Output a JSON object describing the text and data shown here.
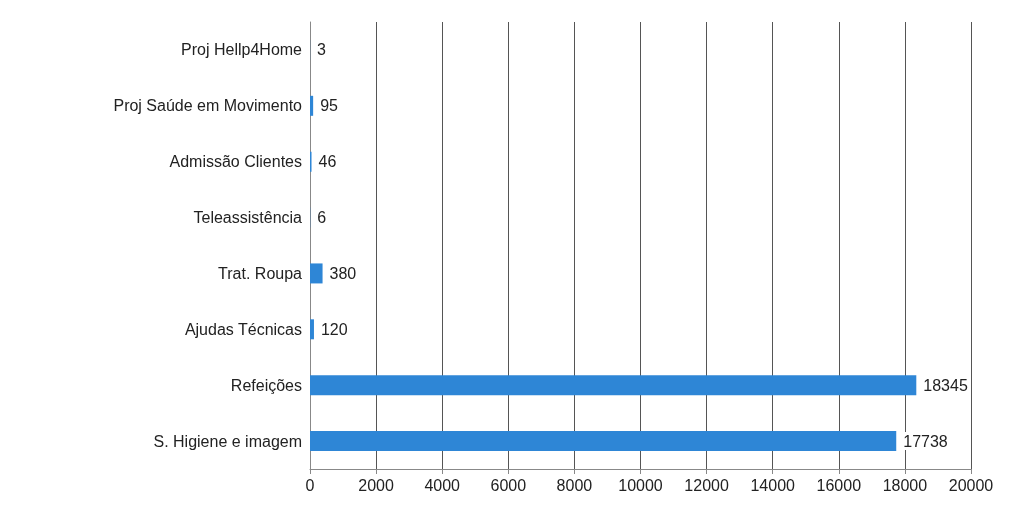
{
  "chart_data": {
    "type": "bar",
    "orientation": "horizontal",
    "categories": [
      "Proj Hellp4Home",
      "Proj Saúde em Movimento",
      "Admissão Clientes",
      "Teleassistência",
      "Trat. Roupa",
      "Ajudas Técnicas",
      "Refeições",
      "S. Higiene e imagem"
    ],
    "values": [
      3,
      95,
      46,
      6,
      380,
      120,
      18345,
      17738
    ],
    "color": "#2e86d6",
    "xlim": [
      0,
      20000
    ],
    "xticks": [
      0,
      2000,
      4000,
      6000,
      8000,
      10000,
      12000,
      14000,
      16000,
      18000,
      20000
    ],
    "grid": "x",
    "data_labels": true
  }
}
